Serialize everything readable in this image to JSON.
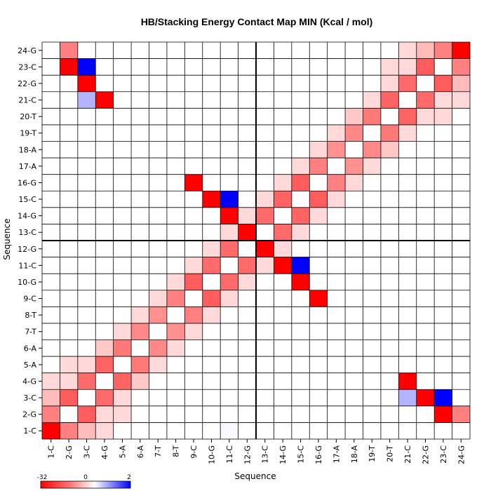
{
  "chart_data": {
    "type": "heatmap",
    "title": "HB/Stacking Energy Contact Map MIN (Kcal / mol)",
    "xlabel": "Sequence",
    "ylabel": "Sequence",
    "x_categories": [
      "1-C",
      "2-G",
      "3-C",
      "4-G",
      "5-A",
      "6-A",
      "7-T",
      "8-T",
      "9-C",
      "10-G",
      "11-C",
      "12-G",
      "13-C",
      "14-G",
      "15-C",
      "16-G",
      "17-A",
      "18-A",
      "19-T",
      "20-T",
      "21-C",
      "22-G",
      "23-C",
      "24-G"
    ],
    "y_categories": [
      "1-C",
      "2-G",
      "3-C",
      "4-G",
      "5-A",
      "6-A",
      "7-T",
      "8-T",
      "9-C",
      "10-G",
      "11-C",
      "12-G",
      "13-C",
      "14-G",
      "15-C",
      "16-G",
      "17-A",
      "18-A",
      "19-T",
      "20-T",
      "21-C",
      "22-G",
      "23-C",
      "24-G"
    ],
    "color_scale": {
      "min": -32,
      "mid": 0,
      "max": 2,
      "low_color": "#ff0000",
      "mid_color": "#ffffff",
      "high_color": "#0000ff"
    },
    "colorbar_ticks": [
      "-32",
      "0",
      "2"
    ],
    "values": [
      [
        0,
        -9,
        -3,
        -1,
        0,
        0,
        0,
        0,
        0,
        0,
        0.05,
        0,
        0,
        0,
        0,
        0,
        0,
        0,
        0,
        0,
        0,
        0,
        0,
        0
      ],
      [
        -9,
        0,
        -14,
        -1,
        -1,
        0,
        0,
        0,
        0,
        0,
        0,
        0,
        0,
        0,
        0,
        0,
        0,
        0,
        0,
        0,
        0,
        0,
        0,
        0
      ],
      [
        -3,
        -14,
        0,
        -12,
        -1,
        0,
        0,
        0,
        0,
        0,
        0,
        0,
        0,
        0,
        0,
        0,
        0,
        0,
        0,
        0,
        0,
        0,
        0,
        0
      ],
      [
        -1,
        -1,
        -12,
        0,
        -13,
        -2,
        0,
        0,
        0,
        0,
        0,
        0,
        0,
        0,
        0,
        0,
        0,
        0,
        0,
        0,
        0,
        0,
        0,
        0
      ],
      [
        0,
        -1,
        -1,
        -13,
        0,
        -10,
        -1,
        0,
        0,
        0,
        0,
        0,
        0,
        0,
        0,
        0,
        0,
        0,
        0,
        0,
        0,
        0,
        0,
        0
      ],
      [
        0,
        0,
        0,
        -2,
        -10,
        0,
        -8,
        -1,
        0,
        0,
        0,
        0,
        0,
        0,
        0,
        0,
        0,
        0,
        0,
        0,
        0,
        0,
        0,
        0
      ],
      [
        0,
        0,
        0,
        0,
        -1,
        -8,
        0,
        -7,
        -1,
        0,
        0,
        0,
        0,
        0,
        0,
        0,
        0,
        0,
        0,
        0,
        0,
        0,
        0,
        0
      ],
      [
        0,
        0,
        0,
        0,
        0,
        -1,
        -7,
        0,
        -9,
        -1,
        0,
        0,
        0,
        0,
        0,
        0,
        0,
        0,
        0,
        0,
        0,
        0,
        0,
        0
      ],
      [
        0,
        0,
        0,
        0,
        0,
        0,
        -1,
        -9,
        0,
        -14,
        -1,
        0,
        0,
        0,
        0,
        0,
        0,
        0,
        0,
        0,
        0,
        0,
        0,
        0
      ],
      [
        0,
        0,
        0,
        0,
        0,
        0,
        0,
        -1,
        -14,
        0,
        -13,
        -1,
        0,
        0,
        0,
        0,
        0,
        0,
        0,
        0,
        0,
        0,
        0,
        0
      ],
      [
        0,
        0,
        0,
        0,
        0,
        0,
        0,
        0,
        -1,
        -13,
        0,
        -12,
        -1,
        0,
        0,
        0,
        0,
        0,
        0,
        0,
        0,
        0,
        0,
        0
      ],
      [
        0,
        0,
        0,
        0,
        0,
        0,
        0,
        0,
        0,
        -1,
        -12,
        0,
        -14,
        -1,
        0,
        0,
        0,
        0,
        0,
        0,
        0,
        0,
        0,
        0
      ],
      [
        0,
        0,
        0,
        0,
        0,
        0,
        0,
        0,
        0,
        0,
        -1,
        -14,
        0,
        -12,
        -1,
        0,
        0,
        0,
        0,
        0,
        0,
        0,
        0,
        0
      ],
      [
        0,
        0,
        0,
        0,
        0,
        0,
        0,
        0,
        0,
        0,
        0,
        -1,
        -12,
        0,
        -13,
        -1,
        0,
        0,
        0,
        0,
        0,
        0,
        0,
        0
      ],
      [
        0,
        0,
        0,
        0,
        0,
        0,
        0,
        0,
        0,
        0,
        0,
        0,
        -1,
        -13,
        0,
        -14,
        -1,
        0,
        0,
        0,
        0,
        0,
        0,
        0
      ],
      [
        0,
        0,
        0,
        0,
        0,
        0,
        0,
        0,
        0,
        0,
        0,
        0,
        0,
        -1,
        -14,
        0,
        -9,
        -1,
        0,
        0,
        0,
        0,
        0,
        0
      ],
      [
        0,
        0,
        0,
        0,
        0,
        0,
        0,
        0,
        0,
        0,
        0,
        0,
        0,
        0,
        -1,
        -9,
        0,
        -7,
        -1,
        0,
        0,
        0,
        0,
        0
      ],
      [
        0,
        0,
        0,
        0,
        0,
        0,
        0,
        0,
        0,
        0,
        0,
        0,
        0,
        0,
        0,
        -1,
        -7,
        0,
        -8,
        -2,
        0,
        0,
        0,
        0
      ],
      [
        0,
        0,
        0,
        0,
        0,
        0,
        0,
        0,
        0,
        0,
        0,
        0,
        0,
        0,
        0,
        0,
        -1,
        -8,
        0,
        -10,
        -1,
        0,
        0,
        0
      ],
      [
        0,
        0,
        0,
        0,
        0,
        0,
        0,
        0,
        0,
        0,
        0,
        0,
        0,
        0,
        0,
        0,
        0,
        -2,
        -10,
        0,
        -13,
        -1,
        -1,
        0
      ],
      [
        0,
        0,
        0,
        0,
        0,
        0,
        0,
        0,
        0,
        0,
        0,
        0,
        0,
        0,
        0,
        0,
        0,
        0,
        -1,
        -13,
        0,
        -12,
        -1,
        -1
      ],
      [
        0,
        0,
        0,
        0,
        0,
        0,
        0,
        0,
        0,
        0,
        0,
        0,
        0,
        0,
        0,
        0,
        0,
        0,
        0,
        -1,
        -12,
        0,
        -14,
        -3
      ],
      [
        0,
        0,
        0,
        0,
        0,
        0,
        0,
        0,
        0,
        0,
        0,
        0,
        0,
        0,
        0,
        0,
        0,
        0,
        0,
        -1,
        -1,
        -14,
        0,
        -9
      ],
      [
        0,
        0,
        0,
        0,
        0,
        0,
        0,
        0,
        0,
        0,
        0,
        0,
        0,
        0,
        0,
        0,
        0,
        0,
        0,
        0,
        -1,
        -3,
        -9,
        0
      ]
    ],
    "overrides": [
      {
        "x": "1-C",
        "y": "1-C",
        "v": -32
      },
      {
        "x": "24-G",
        "y": "24-G",
        "v": -32
      },
      {
        "x": "2-G",
        "y": "23-C",
        "v": -32
      },
      {
        "x": "23-C",
        "y": "2-G",
        "v": -32
      },
      {
        "x": "3-C",
        "y": "22-G",
        "v": -32
      },
      {
        "x": "22-G",
        "y": "3-C",
        "v": -32
      },
      {
        "x": "3-C",
        "y": "23-C",
        "v": 2
      },
      {
        "x": "23-C",
        "y": "3-C",
        "v": 2
      },
      {
        "x": "3-C",
        "y": "21-C",
        "v": 0.6
      },
      {
        "x": "21-C",
        "y": "3-C",
        "v": 0.6
      },
      {
        "x": "4-G",
        "y": "21-C",
        "v": -32
      },
      {
        "x": "21-C",
        "y": "4-G",
        "v": -32
      },
      {
        "x": "2-G",
        "y": "24-G",
        "v": -9
      },
      {
        "x": "24-G",
        "y": "2-G",
        "v": -9
      },
      {
        "x": "24-G",
        "y": "23-C",
        "v": -9
      },
      {
        "x": "23-C",
        "y": "24-G",
        "v": -9
      },
      {
        "x": "23-C",
        "y": "24-G",
        "v": -9
      },
      {
        "x": "22-G",
        "y": "23-C",
        "v": -14
      },
      {
        "x": "23-C",
        "y": "22-G",
        "v": -14
      },
      {
        "x": "9-C",
        "y": "16-G",
        "v": -32
      },
      {
        "x": "16-G",
        "y": "9-C",
        "v": -32
      },
      {
        "x": "10-G",
        "y": "15-C",
        "v": -32
      },
      {
        "x": "15-C",
        "y": "10-G",
        "v": -32
      },
      {
        "x": "11-C",
        "y": "14-G",
        "v": -32
      },
      {
        "x": "14-G",
        "y": "11-C",
        "v": -32
      },
      {
        "x": "12-G",
        "y": "13-C",
        "v": -32
      },
      {
        "x": "13-C",
        "y": "12-G",
        "v": -32
      },
      {
        "x": "11-C",
        "y": "15-C",
        "v": 2
      },
      {
        "x": "15-C",
        "y": "11-C",
        "v": 2
      },
      {
        "x": "10-G",
        "y": "11-C",
        "v": -12
      },
      {
        "x": "11-C",
        "y": "10-G",
        "v": -12
      },
      {
        "x": "14-G",
        "y": "15-C",
        "v": -13
      },
      {
        "x": "15-C",
        "y": "14-G",
        "v": -13
      },
      {
        "x": "10-G",
        "y": "9-C",
        "v": -14
      },
      {
        "x": "9-C",
        "y": "10-G",
        "v": -14
      }
    ]
  }
}
